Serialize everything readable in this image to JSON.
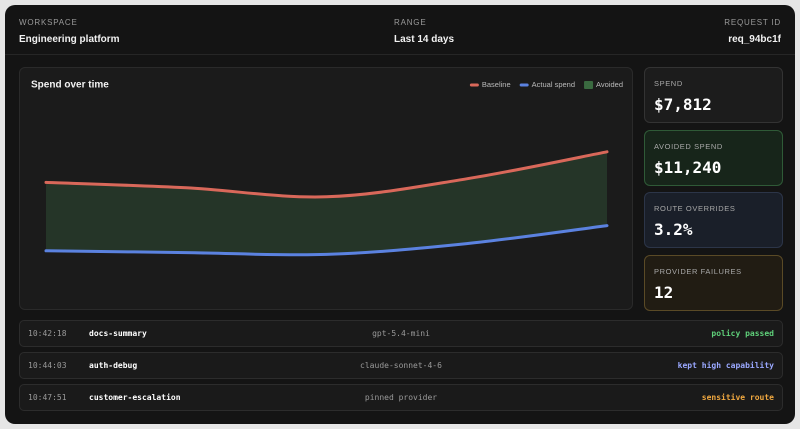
{
  "header": {
    "workspace": {
      "label": "WORKSPACE",
      "value": "Engineering platform"
    },
    "range": {
      "label": "RANGE",
      "value": "Last 14 days"
    },
    "request": {
      "label": "REQUEST ID",
      "value": "req_94bc1f"
    }
  },
  "chart_data": {
    "type": "area-between",
    "title": "Spend over time",
    "categories": [
      null,
      null,
      null,
      null,
      null
    ],
    "series": [
      {
        "name": "Baseline",
        "color": "#d9685a",
        "values": [
          52,
          49,
          44,
          54,
          69
        ]
      },
      {
        "name": "Actual spend",
        "color": "#5b82e0",
        "values": [
          14,
          13,
          12,
          18,
          28
        ]
      }
    ],
    "fill": {
      "name": "Avoided",
      "color": "#27392a"
    },
    "ylim": [
      0,
      100
    ]
  },
  "stats": [
    {
      "label": "SPEND",
      "value": "$7,812",
      "bg": "#1c1c1c",
      "border": "#333333"
    },
    {
      "label": "AVOIDED SPEND",
      "value": "$11,240",
      "bg": "#17251a",
      "border": "#2f5a37"
    },
    {
      "label": "ROUTE OVERRIDES",
      "value": "3.2%",
      "bg": "#1a1f29",
      "border": "#2c3548"
    },
    {
      "label": "PROVIDER FAILURES",
      "value": "12",
      "bg": "#211c13",
      "border": "#5a4a26"
    }
  ],
  "rows": [
    {
      "time": "10:42:18",
      "name": "docs-summary",
      "model": "gpt-5.4-mini",
      "status": "policy passed",
      "color": "#5fd07a"
    },
    {
      "time": "10:44:03",
      "name": "auth-debug",
      "model": "claude-sonnet-4-6",
      "status": "kept high capability",
      "color": "#9aa8ff"
    },
    {
      "time": "10:47:51",
      "name": "customer-escalation",
      "model": "pinned provider",
      "status": "sensitive route",
      "color": "#f0a840"
    }
  ]
}
